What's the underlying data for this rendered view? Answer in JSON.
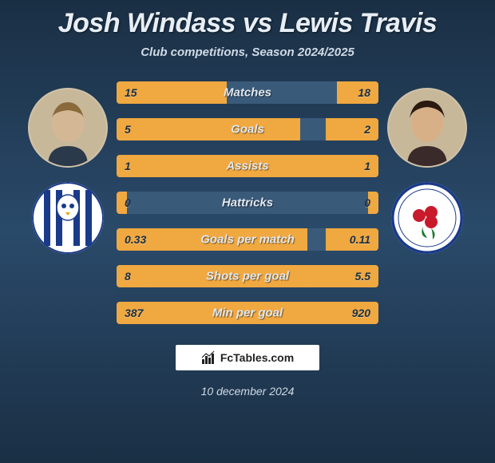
{
  "title": "Josh Windass vs Lewis Travis",
  "subtitle": "Club competitions, Season 2024/2025",
  "date": "10 december 2024",
  "footer_brand": "FcTables.com",
  "colors": {
    "bar_fill": "#f0a840",
    "bar_bg": "#3a5a7a",
    "bg_top": "#1a2f44",
    "bg_mid": "#2a4a6a",
    "title": "#e8eef5",
    "subtitle": "#d0dae5"
  },
  "player_left": {
    "name": "Josh Windass"
  },
  "player_right": {
    "name": "Lewis Travis"
  },
  "club_left": {
    "name": "Sheffield Wednesday",
    "bg": "#ffffff",
    "stripe": "#1a3a8a"
  },
  "club_right": {
    "name": "Blackburn Rovers",
    "bg": "#ffffff",
    "ring": "#1a3a8a"
  },
  "stats": [
    {
      "label": "Matches",
      "left_val": "15",
      "right_val": "18",
      "left_pct": 42,
      "right_pct": 16
    },
    {
      "label": "Goals",
      "left_val": "5",
      "right_val": "2",
      "left_pct": 70,
      "right_pct": 20
    },
    {
      "label": "Assists",
      "left_val": "1",
      "right_val": "1",
      "left_pct": 50,
      "right_pct": 50
    },
    {
      "label": "Hattricks",
      "left_val": "0",
      "right_val": "0",
      "left_pct": 4,
      "right_pct": 4
    },
    {
      "label": "Goals per match",
      "left_val": "0.33",
      "right_val": "0.11",
      "left_pct": 73,
      "right_pct": 20
    },
    {
      "label": "Shots per goal",
      "left_val": "8",
      "right_val": "5.5",
      "left_pct": 60,
      "right_pct": 40
    },
    {
      "label": "Min per goal",
      "left_val": "387",
      "right_val": "920",
      "left_pct": 30,
      "right_pct": 70
    }
  ]
}
